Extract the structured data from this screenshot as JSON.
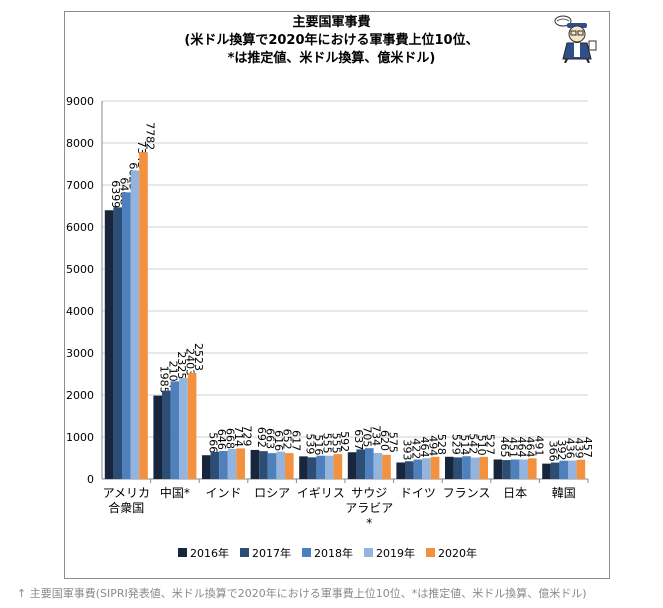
{
  "chart_data": {
    "type": "bar",
    "title_lines": [
      "主要国軍事費",
      "(米ドル換算で2020年における軍事費上位10位、",
      "*は推定値、米ドル換算、億米ドル)"
    ],
    "categories": [
      [
        "アメリカ",
        "合衆国"
      ],
      [
        "中国*"
      ],
      [
        "インド"
      ],
      [
        "ロシア"
      ],
      [
        "イギリス"
      ],
      [
        "サウジ",
        "アラビア",
        "*"
      ],
      [
        "ドイツ"
      ],
      [
        "フランス"
      ],
      [
        "日本"
      ],
      [
        "韓国"
      ]
    ],
    "series": [
      {
        "name": "2016年",
        "color": "#17263d",
        "values": [
          6399,
          1985,
          566,
          692,
          539,
          637,
          393,
          529,
          465,
          366
        ]
      },
      {
        "name": "2017年",
        "color": "#2c4d74",
        "values": [
          6468,
          2104,
          646,
          663,
          516,
          705,
          422,
          514,
          451,
          392
        ]
      },
      {
        "name": "2018年",
        "color": "#4e80bd",
        "values": [
          6825,
          2325,
          668,
          616,
          555,
          734,
          464,
          542,
          464,
          436
        ]
      },
      {
        "name": "2019年",
        "color": "#93b4dd",
        "values": [
          7343,
          2403,
          714,
          652,
          555,
          620,
          494,
          510,
          464,
          439
        ]
      },
      {
        "name": "2020年",
        "color": "#f4913e",
        "values": [
          7782,
          2523,
          729,
          617,
          592,
          575,
          528,
          527,
          491,
          457
        ]
      }
    ],
    "ylim": [
      0,
      9000
    ],
    "yticks": [
      0,
      1000,
      2000,
      3000,
      4000,
      5000,
      6000,
      7000,
      8000,
      9000
    ],
    "grid": true,
    "legend": "bottom"
  },
  "caption": "↑ 主要国軍事費(SIPRI発表値、米ドル換算で2020年における軍事費上位10位、*は推定値、米ドル換算、億米ドル)",
  "mascot_icon": "reporter-mascot-icon"
}
